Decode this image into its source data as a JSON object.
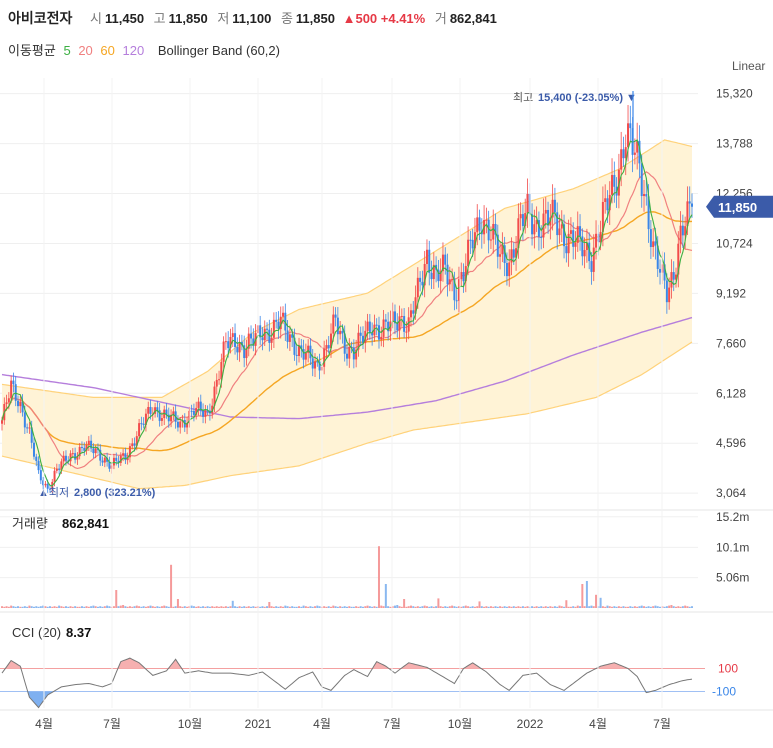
{
  "header": {
    "stock_name": "아비코전자",
    "open_label": "시",
    "open_value": "11,450",
    "high_label": "고",
    "high_value": "11,850",
    "low_label": "저",
    "low_value": "11,100",
    "close_label": "종",
    "close_value": "11,850",
    "change": "▲500 +4.41%",
    "volume_label": "거",
    "volume_value": "862,841"
  },
  "legend": {
    "ma_label": "이동평균",
    "ma5": "5",
    "ma20": "20",
    "ma60": "60",
    "ma120": "120",
    "bollinger": "Bollinger Band (60,2)"
  },
  "colors": {
    "up": "#f24b4b",
    "down": "#3a86e8",
    "ma5": "#3cb043",
    "ma20": "#f08080",
    "ma60": "#f5a623",
    "ma120": "#b57edc",
    "band_fill": "#fff3d6",
    "band_line": "#ffd27a",
    "price_tag": "#3b5ba9"
  },
  "price_panel": {
    "scale_label": "Linear",
    "y_ticks": [
      "15,320",
      "13,788",
      "12,256",
      "10,724",
      "9,192",
      "7,660",
      "6,128",
      "4,596",
      "3,064"
    ],
    "current_price_tag": "11,850",
    "high_annotation": {
      "label": "최고",
      "value": "15,400 (-23.05%)"
    },
    "low_annotation": {
      "label": "최저",
      "value": "2,800 (323.21%)"
    }
  },
  "volume_panel": {
    "label": "거래량",
    "value": "862,841",
    "y_ticks": [
      "15.2m",
      "10.1m",
      "5.06m"
    ]
  },
  "cci_panel": {
    "label": "CCI (20)",
    "value": "8.37",
    "levels": [
      "100",
      "-100"
    ]
  },
  "x_axis": [
    "4월",
    "7월",
    "10월",
    "2021",
    "4월",
    "7월",
    "10월",
    "2022",
    "4월",
    "7월"
  ],
  "chart_data": {
    "type": "candlestick",
    "ylim": [
      2700,
      15800
    ],
    "y_ticks": [
      15320,
      13788,
      12256,
      10724,
      9192,
      7660,
      6128,
      4596,
      3064
    ],
    "annotations": [
      {
        "label": "최고",
        "value": 15400,
        "text": "15,400 (-23.05%)"
      },
      {
        "label": "최저",
        "value": 2800,
        "text": "2,800 (323.21%)"
      }
    ],
    "price_path": [
      [
        0,
        5300
      ],
      [
        4,
        6300
      ],
      [
        8,
        5800
      ],
      [
        12,
        4900
      ],
      [
        16,
        3600
      ],
      [
        20,
        3200
      ],
      [
        24,
        3800
      ],
      [
        30,
        4200
      ],
      [
        36,
        4500
      ],
      [
        42,
        4300
      ],
      [
        48,
        3900
      ],
      [
        54,
        4200
      ],
      [
        60,
        5000
      ],
      [
        66,
        5700
      ],
      [
        72,
        5400
      ],
      [
        78,
        5200
      ],
      [
        84,
        5600
      ],
      [
        90,
        5500
      ],
      [
        94,
        6500
      ],
      [
        98,
        7600
      ],
      [
        102,
        7800
      ],
      [
        106,
        7500
      ],
      [
        110,
        7700
      ],
      [
        114,
        8100
      ],
      [
        118,
        8000
      ],
      [
        122,
        8300
      ],
      [
        126,
        7900
      ],
      [
        130,
        7400
      ],
      [
        134,
        7200
      ],
      [
        138,
        7000
      ],
      [
        142,
        7500
      ],
      [
        146,
        8300
      ],
      [
        150,
        7600
      ],
      [
        154,
        7400
      ],
      [
        158,
        7800
      ],
      [
        162,
        8300
      ],
      [
        166,
        8000
      ],
      [
        170,
        8200
      ],
      [
        174,
        8500
      ],
      [
        178,
        8200
      ],
      [
        182,
        9200
      ],
      [
        186,
        10400
      ],
      [
        190,
        9700
      ],
      [
        194,
        9900
      ],
      [
        198,
        9300
      ],
      [
        202,
        9800
      ],
      [
        206,
        10800
      ],
      [
        210,
        11600
      ],
      [
        214,
        11000
      ],
      [
        218,
        10300
      ],
      [
        222,
        10200
      ],
      [
        226,
        11100
      ],
      [
        230,
        11700
      ],
      [
        234,
        11300
      ],
      [
        238,
        11400
      ],
      [
        242,
        11500
      ],
      [
        246,
        11000
      ],
      [
        250,
        10800
      ],
      [
        254,
        10600
      ],
      [
        258,
        10400
      ],
      [
        262,
        11200
      ],
      [
        266,
        12200
      ],
      [
        270,
        13100
      ],
      [
        273,
        14000
      ],
      [
        276,
        13600
      ],
      [
        279,
        13200
      ],
      [
        282,
        12000
      ],
      [
        285,
        10500
      ],
      [
        288,
        9800
      ],
      [
        291,
        9300
      ],
      [
        294,
        9900
      ],
      [
        297,
        10900
      ],
      [
        300,
        11450
      ],
      [
        302,
        11850
      ]
    ],
    "ma120": [
      [
        0,
        6700
      ],
      [
        40,
        6300
      ],
      [
        80,
        5700
      ],
      [
        100,
        5400
      ],
      [
        130,
        5350
      ],
      [
        160,
        5550
      ],
      [
        190,
        5900
      ],
      [
        220,
        6500
      ],
      [
        250,
        7300
      ],
      [
        280,
        8000
      ],
      [
        302,
        8450
      ]
    ],
    "bollinger_upper": [
      [
        0,
        6400
      ],
      [
        40,
        6000
      ],
      [
        70,
        6000
      ],
      [
        90,
        6800
      ],
      [
        110,
        8000
      ],
      [
        130,
        8700
      ],
      [
        160,
        9200
      ],
      [
        190,
        10500
      ],
      [
        220,
        11800
      ],
      [
        250,
        12400
      ],
      [
        270,
        13000
      ],
      [
        290,
        13900
      ],
      [
        302,
        13700
      ]
    ],
    "bollinger_lower": [
      [
        0,
        4200
      ],
      [
        30,
        3700
      ],
      [
        60,
        3200
      ],
      [
        80,
        3300
      ],
      [
        100,
        3600
      ],
      [
        130,
        3900
      ],
      [
        160,
        4600
      ],
      [
        180,
        5000
      ],
      [
        200,
        5200
      ],
      [
        230,
        5500
      ],
      [
        260,
        6000
      ],
      [
        280,
        6700
      ],
      [
        302,
        7700
      ]
    ],
    "volume": [
      0.3,
      0.2,
      0.3,
      0.2,
      0.4,
      0.3,
      0.2,
      0.3,
      0.2,
      0.2,
      0.3,
      0.2,
      0.4,
      0.3,
      0.2,
      0.3,
      0.2,
      0.3,
      0.4,
      0.3,
      0.2,
      0.3,
      0.2,
      0.3,
      0.2,
      0.4,
      0.3,
      0.2,
      0.3,
      0.2,
      0.3,
      0.2,
      0.3,
      0.2,
      0.2,
      0.3,
      0.2,
      0.3,
      0.2,
      0.3,
      0.4,
      0.3,
      0.2,
      0.3,
      0.2,
      0.3,
      0.4,
      0.3,
      0.2,
      0.3,
      0.2,
      0.3,
      0.4,
      0.5,
      0.3,
      0.2,
      0.3,
      0.2,
      0.3,
      0.4,
      0.3,
      0.2,
      0.3,
      0.2,
      0.3,
      0.4,
      0.3,
      0.2,
      0.3,
      0.2,
      0.3,
      0.4,
      0.3,
      0.2,
      0.3,
      0.2,
      0.3,
      0.4,
      0.3,
      0.2,
      0.3,
      0.2,
      0.3,
      0.4,
      0.3,
      0.2,
      0.3,
      0.2,
      0.3,
      0.2,
      0.3,
      0.2,
      0.3,
      0.2,
      0.3,
      0.2,
      0.3,
      0.2,
      0.3,
      0.2,
      0.3,
      0.2,
      0.3,
      0.2,
      0.3,
      0.2,
      0.3,
      0.2,
      0.3,
      0.2,
      0.3,
      0.2,
      0.3,
      0.2,
      0.3,
      0.2,
      0.3,
      0.2,
      0.3,
      0.2
    ],
    "volume_spikes": [
      {
        "i": 50,
        "v": 3.0,
        "up": true
      },
      {
        "i": 74,
        "v": 7.2,
        "up": true
      },
      {
        "i": 77,
        "v": 1.5,
        "up": true
      },
      {
        "i": 101,
        "v": 1.2,
        "up": false
      },
      {
        "i": 117,
        "v": 1.0,
        "up": true
      },
      {
        "i": 165,
        "v": 10.3,
        "up": true
      },
      {
        "i": 168,
        "v": 4.0,
        "up": false
      },
      {
        "i": 176,
        "v": 1.5,
        "up": true
      },
      {
        "i": 191,
        "v": 1.6,
        "up": true
      },
      {
        "i": 209,
        "v": 1.1,
        "up": true
      },
      {
        "i": 247,
        "v": 1.3,
        "up": true
      },
      {
        "i": 254,
        "v": 4.0,
        "up": true
      },
      {
        "i": 256,
        "v": 4.5,
        "up": false
      },
      {
        "i": 260,
        "v": 2.2,
        "up": true
      },
      {
        "i": 262,
        "v": 1.7,
        "up": false
      }
    ],
    "cci": [
      [
        0,
        60
      ],
      [
        4,
        170
      ],
      [
        8,
        120
      ],
      [
        12,
        -150
      ],
      [
        16,
        -240
      ],
      [
        20,
        -130
      ],
      [
        26,
        -60
      ],
      [
        32,
        -40
      ],
      [
        38,
        -30
      ],
      [
        44,
        -60
      ],
      [
        48,
        -30
      ],
      [
        52,
        160
      ],
      [
        56,
        190
      ],
      [
        60,
        150
      ],
      [
        66,
        40
      ],
      [
        72,
        80
      ],
      [
        76,
        180
      ],
      [
        80,
        60
      ],
      [
        86,
        80
      ],
      [
        92,
        60
      ],
      [
        100,
        60
      ],
      [
        108,
        40
      ],
      [
        114,
        70
      ],
      [
        120,
        -20
      ],
      [
        124,
        -80
      ],
      [
        130,
        20
      ],
      [
        136,
        70
      ],
      [
        140,
        -60
      ],
      [
        144,
        -90
      ],
      [
        150,
        40
      ],
      [
        154,
        90
      ],
      [
        160,
        30
      ],
      [
        164,
        160
      ],
      [
        168,
        120
      ],
      [
        172,
        60
      ],
      [
        178,
        150
      ],
      [
        186,
        110
      ],
      [
        192,
        40
      ],
      [
        198,
        -30
      ],
      [
        202,
        100
      ],
      [
        206,
        150
      ],
      [
        212,
        70
      ],
      [
        218,
        -40
      ],
      [
        222,
        -90
      ],
      [
        228,
        40
      ],
      [
        234,
        60
      ],
      [
        240,
        -40
      ],
      [
        246,
        -90
      ],
      [
        250,
        -30
      ],
      [
        256,
        60
      ],
      [
        262,
        120
      ],
      [
        268,
        150
      ],
      [
        274,
        100
      ],
      [
        278,
        30
      ],
      [
        282,
        -110
      ],
      [
        286,
        -90
      ],
      [
        292,
        -40
      ],
      [
        298,
        -5
      ],
      [
        302,
        8
      ]
    ]
  }
}
